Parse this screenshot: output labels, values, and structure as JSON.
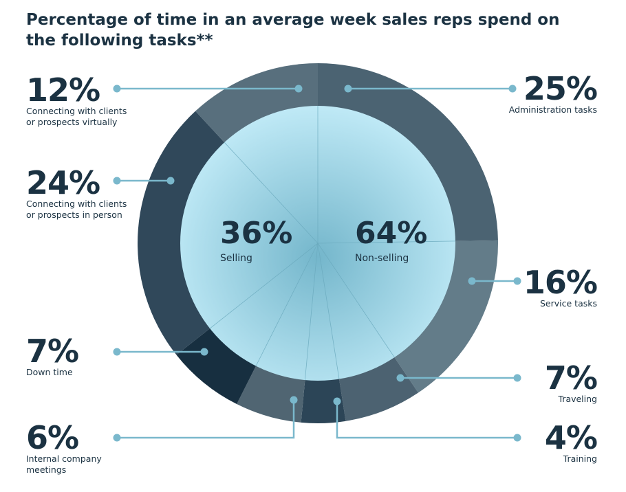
{
  "title": "Percentage of time in an average week sales reps spend on the following tasks**",
  "chart_data": {
    "type": "pie",
    "title": "Percentage of time in an average week sales reps spend on the following tasks**",
    "outer_segments": [
      {
        "label": "Administration tasks",
        "value": 25,
        "pct": "25%",
        "color": "#4b6372"
      },
      {
        "label": "Service tasks",
        "value": 16,
        "pct": "16%",
        "color": "#637c89"
      },
      {
        "label": "Traveling",
        "value": 7,
        "pct": "7%",
        "color": "#4c6271"
      },
      {
        "label": "Training",
        "value": 4,
        "pct": "4%",
        "color": "#2c4557"
      },
      {
        "label": "Internal company meetings",
        "value": 6,
        "pct": "6%",
        "color": "#506572"
      },
      {
        "label": "Down time",
        "value": 7,
        "pct": "7%",
        "color": "#172f40"
      },
      {
        "label": "Connecting with clients or prospects in person",
        "value": 24,
        "pct": "24%",
        "color": "#30485a"
      },
      {
        "label": "Connecting with clients or prospects virtually",
        "value": 12,
        "pct": "12%",
        "color": "#586f7d"
      }
    ],
    "inner_segments": [
      {
        "label": "Non-selling",
        "value": 64,
        "pct": "64%"
      },
      {
        "label": "Selling",
        "value": 36,
        "pct": "36%"
      }
    ],
    "colors": {
      "inner_light": "#c3ecf8",
      "inner_dark": "#7dbfd3",
      "leader": "#7ab8cc"
    }
  },
  "labels": {
    "virtual": {
      "pct": "12%",
      "l1": "Connecting with clients",
      "l2": "or prospects virtually"
    },
    "inperson": {
      "pct": "24%",
      "l1": "Connecting with clients",
      "l2": "or prospects in person"
    },
    "downtime": {
      "pct": "7%",
      "l1": "Down time"
    },
    "internal": {
      "pct": "6%",
      "l1": "Internal company",
      "l2": "meetings"
    },
    "admin": {
      "pct": "25%",
      "l1": "Administration tasks"
    },
    "service": {
      "pct": "16%",
      "l1": "Service tasks"
    },
    "traveling": {
      "pct": "7%",
      "l1": "Traveling"
    },
    "training": {
      "pct": "4%",
      "l1": "Training"
    },
    "selling": {
      "pct": "36%",
      "l1": "Selling"
    },
    "nonselling": {
      "pct": "64%",
      "l1": "Non-selling"
    }
  }
}
